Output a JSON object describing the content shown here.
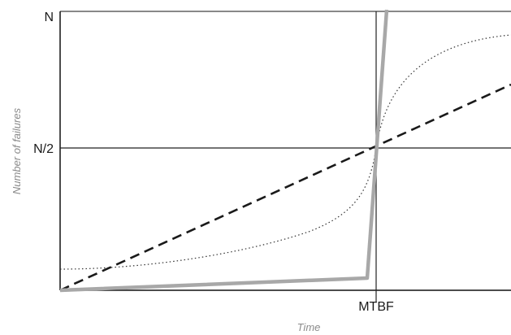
{
  "chart_data": {
    "type": "line",
    "xlabel": "Time",
    "ylabel": "Number of failures",
    "x_ticks": [
      "MTBF"
    ],
    "y_ticks": [
      "N",
      "N/2"
    ],
    "series": [
      {
        "style": "thick-grey-solid",
        "color": "#a8a8a8"
      },
      {
        "style": "dashed",
        "color": "#1a1a1a"
      },
      {
        "style": "dotted",
        "color": "#333333"
      }
    ]
  }
}
